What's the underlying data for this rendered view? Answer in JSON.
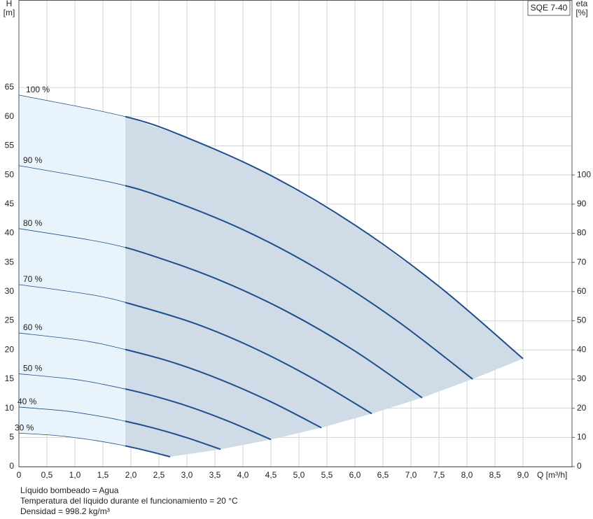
{
  "chart_data": {
    "type": "pump-curve",
    "title": "SQE 7-40",
    "y_axis_title": "H",
    "y_axis_unit": "[m]",
    "y2_axis_title": "eta",
    "y2_axis_unit": "[%]",
    "x_axis_title": "Q [m³/h]",
    "xlim": [
      0,
      9.875
    ],
    "ylim": [
      0,
      80
    ],
    "y2lim": [
      0,
      160
    ],
    "xticks": [
      0,
      {
        "value": 0.5,
        "label": "0,5"
      },
      {
        "value": 1,
        "label": "1,0"
      },
      {
        "value": 1.5,
        "label": "1,5"
      },
      {
        "value": 2,
        "label": "2,0"
      },
      {
        "value": 2.5,
        "label": "2,5"
      },
      {
        "value": 3,
        "label": "3,0"
      },
      {
        "value": 3.5,
        "label": "3,5"
      },
      {
        "value": 4,
        "label": "4,0"
      },
      {
        "value": 4.5,
        "label": "4,5"
      },
      {
        "value": 5,
        "label": "5,0"
      },
      {
        "value": 5.5,
        "label": "5,5"
      },
      {
        "value": 6,
        "label": "6,0"
      },
      {
        "value": 6.5,
        "label": "6,5"
      },
      {
        "value": 7,
        "label": "7,0"
      },
      {
        "value": 7.5,
        "label": "7,5"
      },
      {
        "value": 8,
        "label": "8,0"
      },
      {
        "value": 8.5,
        "label": "8,5"
      },
      {
        "value": 9,
        "label": "9,0"
      }
    ],
    "yticks": [
      0,
      5,
      10,
      15,
      20,
      25,
      30,
      35,
      40,
      45,
      50,
      55,
      60,
      65
    ],
    "y2ticks": [
      0,
      10,
      20,
      30,
      40,
      50,
      60,
      70,
      80,
      90,
      100
    ],
    "grid": true,
    "color": "#1f4e8c",
    "operating_range_min": 1.9,
    "series": [
      {
        "name": "100 %",
        "x": [
          0,
          1.9,
          3,
          4.5,
          6,
          7.5,
          9
        ],
        "values": [
          63.7,
          60.0,
          56.4,
          49.9,
          41.4,
          30.9,
          18.5
        ]
      },
      {
        "name": "90 %",
        "x": [
          0,
          1.71,
          2.7,
          4.05,
          5.4,
          6.75,
          8.1
        ],
        "values": [
          51.6,
          48.6,
          45.7,
          40.4,
          33.5,
          25.0,
          15.0
        ]
      },
      {
        "name": "80 %",
        "x": [
          0,
          1.52,
          2.4,
          3.6,
          4.8,
          6,
          7.2
        ],
        "values": [
          40.8,
          38.4,
          36.1,
          31.9,
          26.5,
          19.8,
          11.8
        ]
      },
      {
        "name": "70 %",
        "x": [
          0,
          1.33,
          2.1,
          3.15,
          4.2,
          5.25,
          6.3
        ],
        "values": [
          31.2,
          29.4,
          27.6,
          24.5,
          20.3,
          15.1,
          9.07
        ]
      },
      {
        "name": "60 %",
        "x": [
          0,
          1.14,
          1.8,
          2.7,
          3.6,
          4.5,
          5.4
        ],
        "values": [
          22.9,
          21.6,
          20.3,
          18.0,
          14.9,
          11.1,
          6.66
        ]
      },
      {
        "name": "50 %",
        "x": [
          0,
          0.95,
          1.5,
          2.25,
          3,
          3.75,
          4.5
        ],
        "values": [
          15.9,
          15.0,
          14.1,
          12.5,
          10.4,
          7.73,
          4.63
        ]
      },
      {
        "name": "40 %",
        "x": [
          0,
          0.76,
          1.2,
          1.8,
          2.4,
          3,
          3.6
        ],
        "values": [
          10.2,
          9.6,
          9.02,
          7.98,
          6.62,
          4.94,
          2.96
        ]
      },
      {
        "name": "30 %",
        "x": [
          0,
          0.57,
          0.9,
          1.35,
          1.8,
          2.25,
          2.7
        ],
        "values": [
          5.73,
          5.4,
          5.08,
          4.49,
          3.73,
          2.78,
          1.67
        ]
      }
    ],
    "notes": [
      "Líquido bombeado = Agua",
      "Temperatura del líquido durante el funcionamiento = 20 °C",
      "Densidad = 998.2 kg/m³"
    ]
  }
}
